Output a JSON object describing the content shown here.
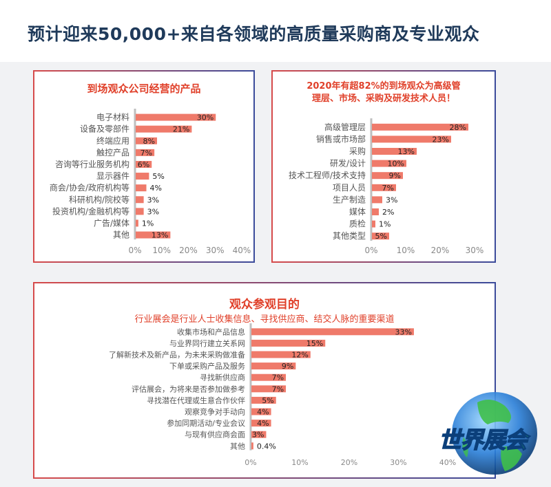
{
  "header": {
    "title": "预计迎来50,000+来自各领域的高质量采购商及专业观众"
  },
  "logo": {
    "text": "世界展会",
    "colors": {
      "text": "#2fd04a",
      "stroke": "#0b3f7a",
      "globe": "#1e6fd0"
    }
  },
  "colors": {
    "bar": "#ef7a6a",
    "axis_text": "#888888",
    "label_text": "#555555",
    "title_red": "#e0402a",
    "header_navy": "#1f3a5a"
  },
  "chart_data": [
    {
      "type": "bar",
      "orientation": "horizontal",
      "title": "到场观众公司经营的产品",
      "categories": [
        "电子材料",
        "设备及零部件",
        "终端应用",
        "触控产品",
        "咨询等行业服务机构",
        "显示器件",
        "商会/协会/政府机构等",
        "科研机构/院校等",
        "投资机构/金融机构等",
        "广告/媒体",
        "其他"
      ],
      "values": [
        30,
        21,
        8,
        7,
        6,
        5,
        4,
        3,
        3,
        1,
        13
      ],
      "value_labels": [
        "30%",
        "21%",
        "8%",
        "7%",
        "6%",
        "5%",
        "4%",
        "3%",
        "3%",
        "1%",
        "13%"
      ],
      "xlim": [
        0,
        40
      ],
      "xticks": [
        "0%",
        "10%",
        "20%",
        "30%",
        "40%"
      ],
      "grid": false
    },
    {
      "type": "bar",
      "orientation": "horizontal",
      "title": "2020年有超82%的到场观众为高级管理层、市场、采购及研发技术人员！",
      "title_lines": [
        "2020年有超82%的到场观众为高级管",
        "理层、市场、采购及研发技术人员！"
      ],
      "categories": [
        "高级管理层",
        "销售或市场部",
        "采购",
        "研发/设计",
        "技术工程师/技术支持",
        "项目人员",
        "生产制造",
        "媒体",
        "质检",
        "其他类型"
      ],
      "values": [
        28,
        23,
        13,
        10,
        9,
        7,
        3,
        2,
        1,
        5
      ],
      "value_labels": [
        "28%",
        "23%",
        "13%",
        "10%",
        "9%",
        "7%",
        "3%",
        "2%",
        "1%",
        "5%"
      ],
      "xlim": [
        0,
        30
      ],
      "xticks": [
        "0%",
        "10%",
        "20%",
        "30%"
      ],
      "grid": false
    },
    {
      "type": "bar",
      "orientation": "horizontal",
      "title": "观众参观目的",
      "subtitle": "行业展会是行业人士收集信息、寻找供应商、结交人脉的重要渠道",
      "categories": [
        "收集市场和产品信息",
        "与业界同行建立关系网",
        "了解新技术及新产品，为未来采购做准备",
        "下单或采购产品及服务",
        "寻找新供应商",
        "评估展会，为将来是否参加做参考",
        "寻找潜在代理或生意合作伙伴",
        "观察竞争对手动向",
        "参加同期活动/专业会议",
        "与现有供应商会面",
        "其他"
      ],
      "values": [
        33,
        15,
        12,
        9,
        7,
        7,
        5,
        4,
        4,
        3,
        0.4
      ],
      "value_labels": [
        "33%",
        "15%",
        "12%",
        "9%",
        "7%",
        "7%",
        "5%",
        "4%",
        "4%",
        "3%",
        "0.4%"
      ],
      "xlim": [
        0,
        40
      ],
      "xticks": [
        "0%",
        "10%",
        "20%",
        "30%",
        "40%"
      ],
      "grid": false
    }
  ]
}
